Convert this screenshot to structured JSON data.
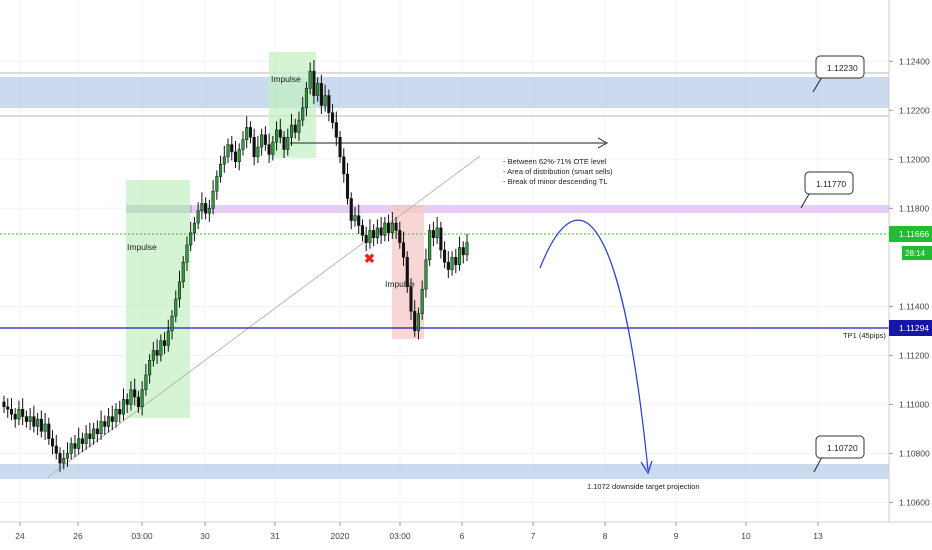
{
  "chart_data": {
    "type": "candlestick",
    "x_ticks": [
      "24",
      "26",
      "03:00",
      "30",
      "31",
      "2020",
      "03:00",
      "6",
      "7",
      "8",
      "9",
      "10",
      "13"
    ],
    "y_ticks": [
      "1.12400",
      "1.12200",
      "1.12000",
      "1.11800",
      "1.11400",
      "1.11200",
      "1.11000",
      "1.10800",
      "1.10600"
    ],
    "y_range": [
      1.1052,
      1.1265
    ],
    "grid": true,
    "current_price": "1.11666",
    "countdown": "28:14",
    "tp_price": "1.11294",
    "tp_label": "TP1 (45pips)",
    "zones": [
      {
        "low": 1.1217,
        "high": 1.1229,
        "color": "#b8cde9"
      },
      {
        "low": 1.1066,
        "high": 1.1071,
        "color": "#b8cde9"
      }
    ],
    "callouts": [
      "1.12230",
      "1.11770",
      "1.10720"
    ],
    "impulse_labels": [
      "Impulse",
      "Impulse",
      "Impulse"
    ],
    "notes": [
      "- Between 62%-71% OTE level",
      "- Area of distribution (smart sells)",
      "- Break of minor descending TL"
    ],
    "projection_label": "1.1072 downside target projection",
    "series": [
      {
        "values": [
          1.1099,
          1.1098,
          1.1096,
          1.1094,
          1.1098,
          1.1095,
          1.1093,
          1.1095,
          1.1091,
          1.1094,
          1.1089,
          1.1092,
          1.1086,
          1.1083,
          1.108,
          1.1076,
          1.1078,
          1.108,
          1.1084,
          1.1082,
          1.1086,
          1.1084,
          1.1088,
          1.1086,
          1.109,
          1.1088,
          1.1093,
          1.1091,
          1.1095,
          1.1093,
          1.1098,
          1.1096,
          1.1102,
          1.11,
          1.1106,
          1.1103,
          1.1099,
          1.1106,
          1.1112,
          1.1118,
          1.1122,
          1.112,
          1.1126,
          1.1124,
          1.113,
          1.1136,
          1.1143,
          1.115,
          1.1158,
          1.1165,
          1.117,
          1.1174,
          1.1179,
          1.1182,
          1.1178,
          1.118,
          1.1187,
          1.1193,
          1.1198,
          1.1201,
          1.1206,
          1.1203,
          1.1199,
          1.1204,
          1.1208,
          1.1213,
          1.1209,
          1.1201,
          1.1205,
          1.121,
          1.1206,
          1.1202,
          1.1207,
          1.1212,
          1.1209,
          1.1204,
          1.1209,
          1.1214,
          1.1211,
          1.1216,
          1.1221,
          1.1229,
          1.1236,
          1.1226,
          1.1231,
          1.1222,
          1.1226,
          1.1219,
          1.1215,
          1.1209,
          1.1201,
          1.1194,
          1.1184,
          1.1175,
          1.1177,
          1.1173,
          1.1169,
          1.1166,
          1.1171,
          1.1168,
          1.1172,
          1.1169,
          1.1174,
          1.117,
          1.1174,
          1.1171,
          1.1166,
          1.116,
          1.1148,
          1.1138,
          1.113,
          1.1137,
          1.1147,
          1.1159,
          1.1171,
          1.1168,
          1.1172,
          1.1163,
          1.1158,
          1.1155,
          1.116,
          1.1157,
          1.1164,
          1.1161,
          1.1166
        ]
      }
    ]
  }
}
